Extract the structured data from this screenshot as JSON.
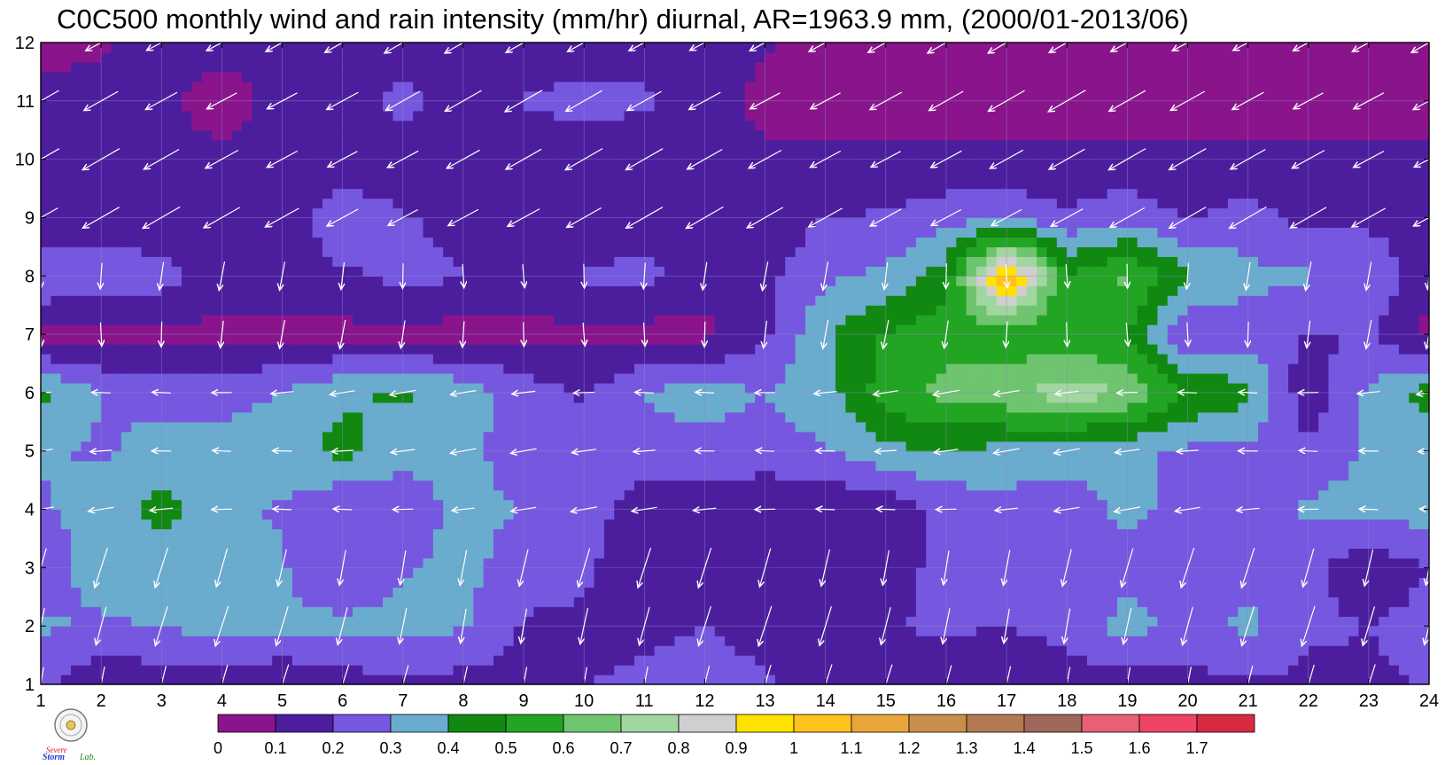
{
  "title": "C0C500 monthly wind and rain intensity (mm/hr) diurnal, AR=1963.9 mm, (2000/01-2013/06)",
  "logo": {
    "icon": "severe-storm-lab-logo-icon",
    "text_top": "Severe",
    "text_mid": "Storm",
    "text_end": "Lab."
  },
  "colors": {
    "contour_line": "#f2a23a",
    "grid": "#8a8ac8",
    "arrow": "#ffffff"
  },
  "chart_data": {
    "type": "heatmap",
    "title": "C0C500 monthly wind and rain intensity (mm/hr) diurnal, AR=1963.9 mm, (2000/01-2013/06)",
    "xlabel": "",
    "ylabel": "",
    "x_ticks": [
      "1",
      "2",
      "3",
      "4",
      "5",
      "6",
      "7",
      "8",
      "9",
      "10",
      "11",
      "12",
      "13",
      "14",
      "15",
      "16",
      "17",
      "18",
      "19",
      "20",
      "21",
      "22",
      "23",
      "24"
    ],
    "y_ticks": [
      "1",
      "2",
      "3",
      "4",
      "5",
      "6",
      "7",
      "8",
      "9",
      "10",
      "11",
      "12"
    ],
    "xlim": [
      1,
      24
    ],
    "ylim": [
      1,
      12
    ],
    "grid": true,
    "levels": [
      "0",
      "0.1",
      "0.2",
      "0.3",
      "0.4",
      "0.5",
      "0.6",
      "0.7",
      "0.8",
      "0.9",
      "1",
      "1.1",
      "1.2",
      "1.3",
      "1.4",
      "1.5",
      "1.6",
      "1.7"
    ],
    "level_colors": [
      "#8a148c",
      "#4c1e9e",
      "#7657df",
      "#6aaccd",
      "#118811",
      "#22a522",
      "#6fc46f",
      "#a2d6a0",
      "#cfcfcf",
      "#ffe200",
      "#ffc21d",
      "#e8a63a",
      "#c98e4c",
      "#b27a52",
      "#a0685a",
      "#e86076",
      "#f04466",
      "#d82a40"
    ],
    "months_rows": [
      {
        "month": 1,
        "values": [
          0.22,
          0.12,
          0.13,
          0.12,
          0.11,
          0.14,
          0.18,
          0.16,
          0.17,
          0.2,
          0.21,
          0.22,
          0.21,
          0.17,
          0.15,
          0.15,
          0.14,
          0.16,
          0.15,
          0.17,
          0.19,
          0.17,
          0.18,
          0.21
        ]
      },
      {
        "month": 2,
        "values": [
          0.31,
          0.29,
          0.31,
          0.33,
          0.32,
          0.33,
          0.33,
          0.31,
          0.19,
          0.18,
          0.19,
          0.2,
          0.18,
          0.18,
          0.2,
          0.21,
          0.2,
          0.22,
          0.35,
          0.25,
          0.33,
          0.22,
          0.2,
          0.24
        ]
      },
      {
        "month": 3,
        "values": [
          0.26,
          0.33,
          0.3,
          0.32,
          0.31,
          0.2,
          0.29,
          0.33,
          0.24,
          0.22,
          0.12,
          0.11,
          0.12,
          0.11,
          0.13,
          0.25,
          0.29,
          0.22,
          0.25,
          0.22,
          0.24,
          0.23,
          0.12,
          0.2
        ]
      },
      {
        "month": 4,
        "values": [
          0.29,
          0.33,
          0.45,
          0.32,
          0.29,
          0.2,
          0.21,
          0.35,
          0.29,
          0.25,
          0.14,
          0.12,
          0.11,
          0.11,
          0.12,
          0.23,
          0.26,
          0.24,
          0.33,
          0.26,
          0.25,
          0.32,
          0.35,
          0.34
        ]
      },
      {
        "month": 5,
        "values": [
          0.31,
          0.29,
          0.33,
          0.34,
          0.36,
          0.43,
          0.35,
          0.33,
          0.24,
          0.22,
          0.26,
          0.27,
          0.26,
          0.29,
          0.38,
          0.39,
          0.37,
          0.34,
          0.32,
          0.28,
          0.27,
          0.22,
          0.31,
          0.31
        ]
      },
      {
        "month": 6,
        "values": [
          0.42,
          0.3,
          0.27,
          0.26,
          0.3,
          0.39,
          0.41,
          0.37,
          0.25,
          0.19,
          0.31,
          0.34,
          0.3,
          0.36,
          0.55,
          0.63,
          0.68,
          0.76,
          0.7,
          0.5,
          0.43,
          0.12,
          0.32,
          0.44
        ]
      },
      {
        "month": 7,
        "values": [
          0.05,
          0.06,
          0.07,
          0.07,
          0.08,
          0.07,
          0.07,
          0.06,
          0.07,
          0.08,
          0.06,
          0.07,
          0.18,
          0.39,
          0.51,
          0.57,
          0.52,
          0.52,
          0.49,
          0.2,
          0.24,
          0.19,
          0.21,
          0.06
        ]
      },
      {
        "month": 8,
        "values": [
          0.31,
          0.29,
          0.24,
          0.16,
          0.14,
          0.18,
          0.23,
          0.2,
          0.14,
          0.21,
          0.23,
          0.14,
          0.17,
          0.28,
          0.32,
          0.45,
          1.1,
          0.5,
          0.62,
          0.42,
          0.33,
          0.31,
          0.29,
          0.14
        ]
      },
      {
        "month": 9,
        "values": [
          0.12,
          0.12,
          0.12,
          0.12,
          0.12,
          0.29,
          0.21,
          0.17,
          0.12,
          0.13,
          0.14,
          0.14,
          0.14,
          0.2,
          0.21,
          0.26,
          0.28,
          0.22,
          0.27,
          0.19,
          0.24,
          0.17,
          0.17,
          0.14
        ]
      },
      {
        "month": 10,
        "values": [
          0.12,
          0.12,
          0.12,
          0.12,
          0.12,
          0.12,
          0.12,
          0.12,
          0.12,
          0.12,
          0.12,
          0.12,
          0.12,
          0.12,
          0.12,
          0.12,
          0.12,
          0.12,
          0.12,
          0.12,
          0.12,
          0.12,
          0.12,
          0.12
        ]
      },
      {
        "month": 11,
        "values": [
          0.14,
          0.13,
          0.12,
          0.06,
          0.13,
          0.14,
          0.24,
          0.13,
          0.21,
          0.24,
          0.22,
          0.14,
          0.07,
          0.06,
          0.05,
          0.05,
          0.06,
          0.07,
          0.06,
          0.07,
          0.06,
          0.06,
          0.06,
          0.06
        ]
      },
      {
        "month": 12,
        "values": [
          0.06,
          0.09,
          0.14,
          0.13,
          0.13,
          0.13,
          0.14,
          0.12,
          0.14,
          0.12,
          0.14,
          0.15,
          0.11,
          0.08,
          0.06,
          0.06,
          0.07,
          0.07,
          0.05,
          0.05,
          0.06,
          0.06,
          0.06,
          0.06
        ]
      }
    ],
    "wind": {
      "description_units": "relative u,v per hour and month",
      "default_by_band": [
        {
          "month_min": 1,
          "month_max": 3,
          "u": -0.25,
          "v": -1.0
        },
        {
          "month_min": 4,
          "month_max": 6,
          "u": -0.6,
          "v": -0.05
        },
        {
          "month_min": 7,
          "month_max": 8,
          "u": -0.05,
          "v": -0.7
        },
        {
          "month_min": 9,
          "month_max": 12,
          "u": -0.9,
          "v": -0.5
        }
      ]
    }
  }
}
